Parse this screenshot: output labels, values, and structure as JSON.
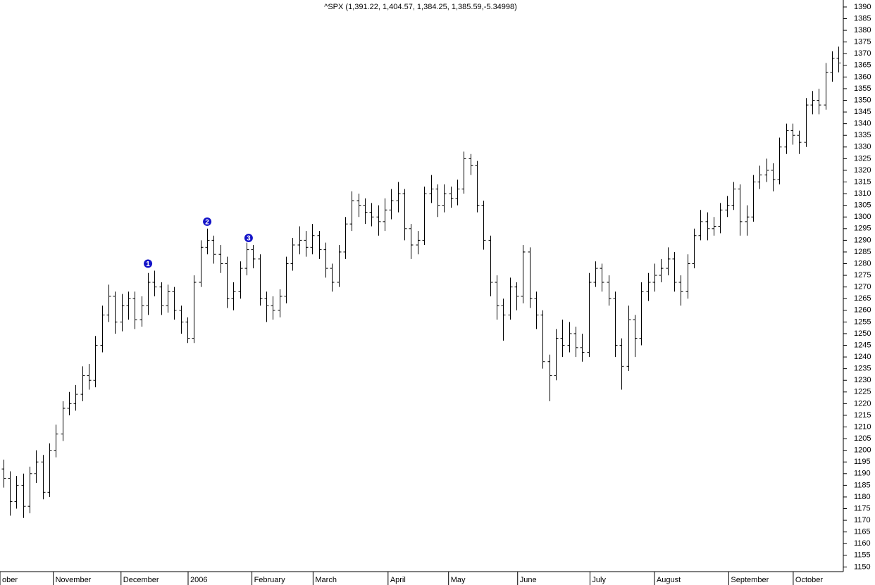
{
  "chart_data": {
    "type": "ohlc",
    "title": "^SPX (1,391.22, 1,404.57, 1,384.25, 1,385.59,-5.34998)",
    "color": "#000000",
    "open": [
      1192,
      1188,
      1178,
      1185,
      1176,
      1190,
      1195,
      1182,
      1200,
      1207,
      1218,
      1220,
      1224,
      1232,
      1230,
      1245,
      1258,
      1266,
      1255,
      1262,
      1265,
      1256,
      1262,
      1272,
      1270,
      1262,
      1268,
      1260,
      1255,
      1248,
      1272,
      1287,
      1290,
      1284,
      1280,
      1265,
      1268,
      1278,
      1286,
      1282,
      1265,
      1262,
      1260,
      1266,
      1280,
      1288,
      1290,
      1287,
      1292,
      1286,
      1278,
      1272,
      1285,
      1297,
      1307,
      1305,
      1302,
      1300,
      1298,
      1303,
      1307,
      1310,
      1295,
      1288,
      1290,
      1310,
      1312,
      1305,
      1310,
      1308,
      1312,
      1325,
      1322,
      1305,
      1290,
      1272,
      1262,
      1258,
      1270,
      1266,
      1285,
      1265,
      1258,
      1238,
      1232,
      1248,
      1245,
      1250,
      1244,
      1242,
      1272,
      1278,
      1272,
      1265,
      1245,
      1236,
      1256,
      1248,
      1268,
      1272,
      1275,
      1278,
      1282,
      1272,
      1268,
      1280,
      1292,
      1298,
      1295,
      1296,
      1303,
      1305,
      1312,
      1298,
      1300,
      1315,
      1318,
      1320,
      1316,
      1330,
      1337,
      1335,
      1332,
      1348,
      1350,
      1348,
      1362,
      1368
    ],
    "high": [
      1196,
      1191,
      1189,
      1190,
      1193,
      1200,
      1198,
      1203,
      1211,
      1221,
      1225,
      1228,
      1236,
      1237,
      1249,
      1262,
      1271,
      1268,
      1267,
      1268,
      1268,
      1266,
      1276,
      1277,
      1272,
      1271,
      1270,
      1262,
      1257,
      1275,
      1290,
      1295,
      1292,
      1288,
      1283,
      1272,
      1281,
      1289,
      1288,
      1284,
      1268,
      1266,
      1269,
      1283,
      1291,
      1296,
      1294,
      1297,
      1294,
      1289,
      1280,
      1288,
      1300,
      1311,
      1310,
      1308,
      1306,
      1305,
      1308,
      1312,
      1315,
      1312,
      1297,
      1294,
      1313,
      1318,
      1314,
      1314,
      1313,
      1316,
      1328,
      1327,
      1324,
      1307,
      1292,
      1275,
      1265,
      1274,
      1272,
      1288,
      1287,
      1268,
      1260,
      1241,
      1252,
      1256,
      1255,
      1253,
      1250,
      1276,
      1281,
      1280,
      1275,
      1268,
      1248,
      1262,
      1258,
      1272,
      1276,
      1280,
      1282,
      1287,
      1285,
      1275,
      1284,
      1295,
      1303,
      1302,
      1300,
      1306,
      1309,
      1315,
      1314,
      1305,
      1318,
      1322,
      1325,
      1323,
      1334,
      1340,
      1340,
      1337,
      1351,
      1354,
      1355,
      1366,
      1371,
      1373
    ],
    "low": [
      1184,
      1172,
      1175,
      1171,
      1173,
      1186,
      1179,
      1180,
      1197,
      1204,
      1215,
      1217,
      1221,
      1226,
      1227,
      1242,
      1255,
      1250,
      1251,
      1256,
      1252,
      1253,
      1258,
      1266,
      1258,
      1259,
      1256,
      1250,
      1246,
      1246,
      1270,
      1284,
      1280,
      1276,
      1261,
      1260,
      1265,
      1275,
      1278,
      1262,
      1255,
      1256,
      1257,
      1263,
      1277,
      1284,
      1283,
      1284,
      1282,
      1274,
      1268,
      1270,
      1282,
      1294,
      1300,
      1297,
      1296,
      1292,
      1294,
      1299,
      1302,
      1290,
      1282,
      1284,
      1288,
      1306,
      1300,
      1302,
      1304,
      1305,
      1310,
      1318,
      1302,
      1286,
      1266,
      1256,
      1247,
      1256,
      1260,
      1263,
      1261,
      1252,
      1235,
      1221,
      1230,
      1240,
      1242,
      1240,
      1238,
      1240,
      1270,
      1268,
      1262,
      1240,
      1226,
      1234,
      1240,
      1245,
      1264,
      1268,
      1272,
      1275,
      1268,
      1262,
      1265,
      1278,
      1290,
      1290,
      1292,
      1293,
      1300,
      1303,
      1292,
      1292,
      1298,
      1312,
      1315,
      1311,
      1314,
      1327,
      1331,
      1327,
      1330,
      1344,
      1344,
      1346,
      1358,
      1362
    ],
    "close": [
      1188,
      1178,
      1185,
      1176,
      1190,
      1195,
      1182,
      1200,
      1207,
      1218,
      1220,
      1224,
      1232,
      1230,
      1245,
      1258,
      1266,
      1255,
      1262,
      1265,
      1256,
      1262,
      1272,
      1270,
      1262,
      1268,
      1260,
      1255,
      1248,
      1272,
      1287,
      1290,
      1284,
      1280,
      1265,
      1268,
      1278,
      1286,
      1282,
      1265,
      1262,
      1260,
      1266,
      1280,
      1288,
      1290,
      1287,
      1292,
      1286,
      1278,
      1272,
      1285,
      1297,
      1307,
      1305,
      1302,
      1300,
      1298,
      1303,
      1307,
      1310,
      1295,
      1288,
      1290,
      1310,
      1312,
      1305,
      1310,
      1308,
      1312,
      1325,
      1322,
      1305,
      1290,
      1272,
      1262,
      1258,
      1270,
      1266,
      1285,
      1265,
      1258,
      1238,
      1232,
      1248,
      1245,
      1250,
      1244,
      1242,
      1272,
      1278,
      1272,
      1265,
      1245,
      1236,
      1256,
      1248,
      1268,
      1272,
      1275,
      1278,
      1282,
      1272,
      1268,
      1280,
      1292,
      1298,
      1295,
      1296,
      1303,
      1305,
      1312,
      1298,
      1300,
      1315,
      1318,
      1320,
      1316,
      1330,
      1337,
      1335,
      1332,
      1348,
      1350,
      1348,
      1362,
      1368,
      1366
    ],
    "xlim": [
      0,
      128
    ],
    "xticks": [
      {
        "value": 0,
        "label": "ober"
      },
      {
        "value": 8.1,
        "label": "November"
      },
      {
        "value": 18.4,
        "label": "December"
      },
      {
        "value": 28.6,
        "label": "2006"
      },
      {
        "value": 38.3,
        "label": "February"
      },
      {
        "value": 47.6,
        "label": "March"
      },
      {
        "value": 59,
        "label": "April"
      },
      {
        "value": 68.2,
        "label": "May"
      },
      {
        "value": 78.7,
        "label": "June"
      },
      {
        "value": 89.7,
        "label": "July"
      },
      {
        "value": 99.5,
        "label": "August"
      },
      {
        "value": 110.8,
        "label": "September"
      },
      {
        "value": 120.6,
        "label": "October"
      }
    ],
    "ylim": [
      1148,
      1393
    ],
    "yticks": [
      1150,
      1155,
      1160,
      1165,
      1170,
      1175,
      1180,
      1185,
      1190,
      1195,
      1200,
      1205,
      1210,
      1215,
      1220,
      1225,
      1230,
      1235,
      1240,
      1245,
      1250,
      1255,
      1260,
      1265,
      1270,
      1275,
      1280,
      1285,
      1290,
      1295,
      1300,
      1305,
      1310,
      1315,
      1320,
      1325,
      1330,
      1335,
      1340,
      1345,
      1350,
      1355,
      1360,
      1365,
      1370,
      1375,
      1380,
      1385,
      1390
    ],
    "annotations": [
      {
        "text": "1",
        "x": 22.5,
        "y": 1280
      },
      {
        "text": "2",
        "x": 31.5,
        "y": 1298
      },
      {
        "text": "3",
        "x": 37.8,
        "y": 1291
      }
    ],
    "annotation_color": "#1414c8",
    "grid": false
  }
}
